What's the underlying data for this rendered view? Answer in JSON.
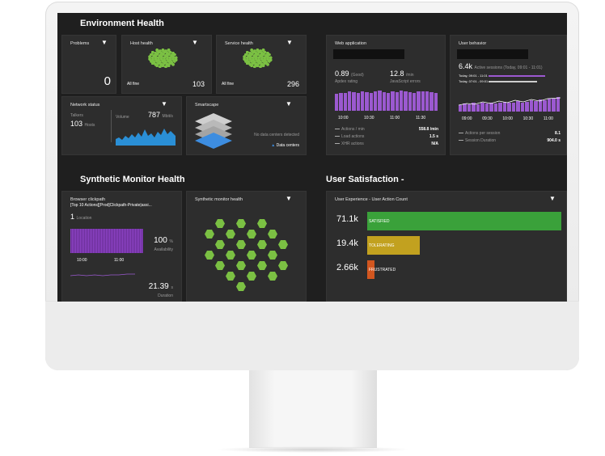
{
  "dashboard": {
    "environment_title": "Environment Health",
    "synthetic_title": "Synthetic Monitor Health",
    "satisfaction_title": "User Satisfaction -"
  },
  "problems": {
    "title": "Problems",
    "count": "0"
  },
  "host_health": {
    "title": "Host health",
    "status": "All fine",
    "count": "103"
  },
  "service_health": {
    "title": "Service health",
    "status": "All fine",
    "count": "296"
  },
  "network_status": {
    "title": "Network status",
    "talkers_label": "Talkers",
    "talkers_value": "103",
    "talkers_unit": "Hosts",
    "volume_label": "Volume",
    "volume_value": "787",
    "volume_unit": "Mbit/s"
  },
  "smartscape": {
    "title": "Smartscape",
    "no_dc": "No data centers detected",
    "dc_label": "Data centers"
  },
  "web_app": {
    "title": "Web application",
    "apdex_value": "0.89",
    "apdex_tag": "(Good)",
    "apdex_label": "Apdex rating",
    "errors_value": "12.8",
    "errors_unit": "/min",
    "errors_label": "JavaScript errors",
    "times": [
      "10:00",
      "10:30",
      "11:00",
      "11:30"
    ],
    "bars": [
      0.75,
      0.8,
      0.78,
      0.85,
      0.82,
      0.8,
      0.86,
      0.83,
      0.79,
      0.84,
      0.88,
      0.82,
      0.8,
      0.85,
      0.83,
      0.9,
      0.86,
      0.82,
      0.78,
      0.84,
      0.87,
      0.85,
      0.83,
      0.8
    ],
    "rows": [
      {
        "label": "Actions / min",
        "value": "558.8",
        "unit": "/min"
      },
      {
        "label": "Load actions",
        "value": "1.5",
        "unit": "s"
      },
      {
        "label": "XHR actions",
        "value": "N/A",
        "unit": ""
      }
    ]
  },
  "user_behavior": {
    "title": "User behavior",
    "sessions_value": "6.4k",
    "sessions_label": "Active sessions (Today, 09:01 - 11:01)",
    "legend_1": "Today, 09:01 - 11:01",
    "legend_2": "Today, 07:01 - 09:01",
    "times": [
      "09:00",
      "09:30",
      "10:00",
      "10:30",
      "11:00"
    ],
    "bars": [
      0.35,
      0.45,
      0.4,
      0.5,
      0.42,
      0.48,
      0.45,
      0.52,
      0.46,
      0.5,
      0.55,
      0.48,
      0.52,
      0.6,
      0.5,
      0.55,
      0.62,
      0.58,
      0.7,
      0.65,
      0.75,
      0.72,
      0.8
    ],
    "rows": [
      {
        "label": "Actions per session",
        "value": "8.1",
        "unit": ""
      },
      {
        "label": "Session Duration",
        "value": "904.0",
        "unit": "s"
      }
    ]
  },
  "clickpath": {
    "title": "Browser clickpath",
    "subtitle": "[Top 10 Actions][Prod]Clickpath-Private|assi...",
    "location_count": "1",
    "location_label": "Location",
    "availability_value": "100",
    "availability_unit": "%",
    "availability_label": "Availability",
    "times": [
      "10:00",
      "11:00"
    ],
    "duration_value": "21.39",
    "duration_unit": "s",
    "duration_label": "Duration"
  },
  "synthetic_health": {
    "title": "Synthetic monitor health"
  },
  "user_experience": {
    "title": "User Experience - User Action Count",
    "rows": [
      {
        "value": "71.1k",
        "label": "SATISFIED",
        "fraction": 1.0,
        "color": "#3aa13a"
      },
      {
        "value": "19.4k",
        "label": "TOLERATING",
        "fraction": 0.27,
        "color": "#c2a11f"
      },
      {
        "value": "2.66k",
        "label": "FRUSTRATED",
        "fraction": 0.037,
        "color": "#d2561f"
      }
    ]
  }
}
